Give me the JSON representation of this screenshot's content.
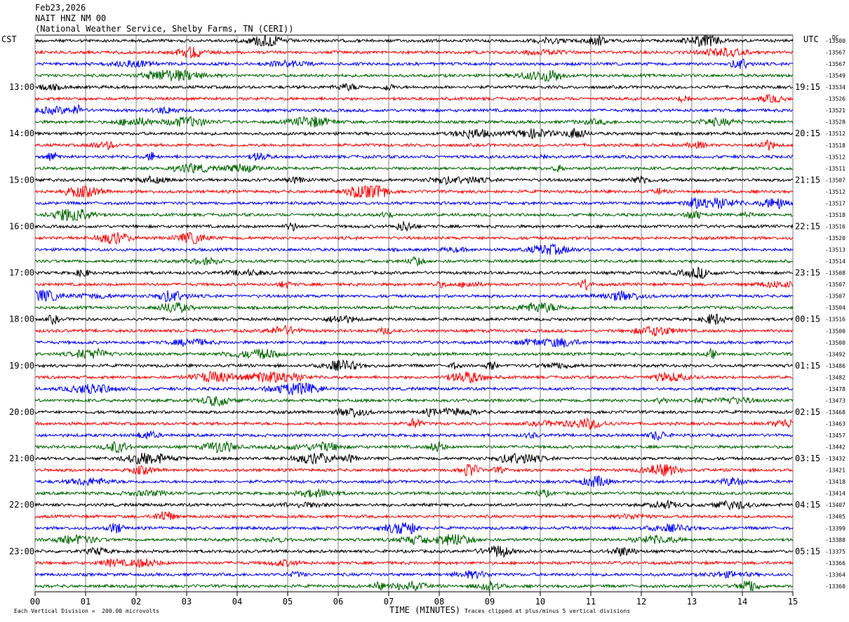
{
  "header": {
    "date": "Feb23,2026",
    "station": "NAIT HNZ NM 00",
    "network": "(National Weather Service, Shelby Farms, TN (CERI))"
  },
  "left_timezone": "CST",
  "right_timezone": "UTC",
  "footer": {
    "scale_note": "Each Vertical Division =  200.00 microvolts",
    "clip_note": "Traces clipped at plus/minus 5 vertical divisions"
  },
  "colors": {
    "trace_cycle": [
      "#000000",
      "#ff0000",
      "#0000ff",
      "#006400"
    ],
    "grid": "#808080"
  },
  "chart_data": {
    "type": "line",
    "description_kind": "helicorder seismogram",
    "xlabel": "TIME (MINUTES)",
    "x_ticks": [
      "00",
      "01",
      "02",
      "03",
      "04",
      "05",
      "06",
      "07",
      "08",
      "09",
      "10",
      "11",
      "12",
      "13",
      "14",
      "15"
    ],
    "xlim": [
      0,
      15
    ],
    "rows_per_hour": 4,
    "left_hour_labels": [
      "13:00",
      "14:00",
      "15:00",
      "16:00",
      "17:00",
      "18:00",
      "19:00",
      "20:00",
      "21:00",
      "22:00",
      "23:00"
    ],
    "right_hour_labels": [
      "19:15",
      "20:15",
      "21:15",
      "22:15",
      "23:15",
      "00:15",
      "01:15",
      "02:15",
      "03:15",
      "04:15",
      "05:15"
    ],
    "row_offsets": [
      "-13500",
      "-13567",
      "-13567",
      "-13549",
      "-13534",
      "-13526",
      "-13521",
      "-13528",
      "-13512",
      "-13518",
      "-13512",
      "-13511",
      "-13507",
      "-13512",
      "-13517",
      "-13518",
      "-13516",
      "-13520",
      "-13513",
      "-13514",
      "-13508",
      "-13507",
      "-13507",
      "-13504",
      "-13516",
      "-13500",
      "-13500",
      "-13492",
      "-13486",
      "-13482",
      "-13478",
      "-13473",
      "-13468",
      "-13463",
      "-13457",
      "-13442",
      "-13432",
      "-13421",
      "-13418",
      "-13414",
      "-13407",
      "-13405",
      "-13399",
      "-13388",
      "-13375",
      "-13366",
      "-13364",
      "-13360"
    ],
    "dc_label": "DC"
  }
}
